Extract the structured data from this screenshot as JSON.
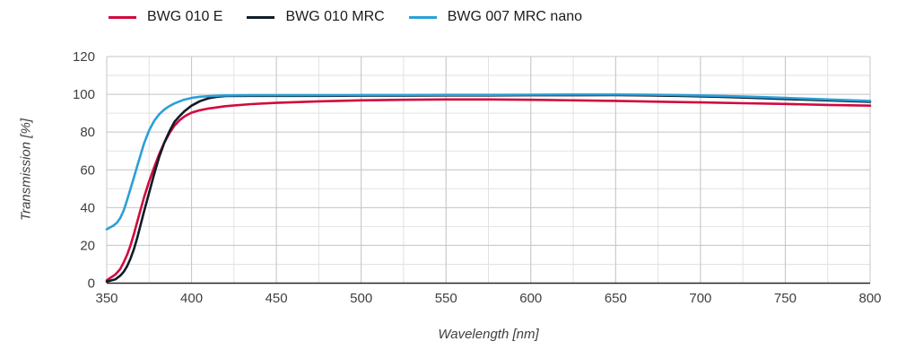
{
  "chart_data": {
    "type": "line",
    "title": "",
    "xlabel": "Wavelength [nm]",
    "ylabel": "Transmission [%]",
    "xlim": [
      350,
      800
    ],
    "ylim": [
      0,
      120
    ],
    "xticks": [
      350,
      400,
      450,
      500,
      550,
      600,
      650,
      700,
      750,
      800
    ],
    "yticks": [
      0,
      20,
      40,
      60,
      80,
      100,
      120
    ],
    "x_minor_step": 25,
    "y_minor_step": 10,
    "grid": true,
    "grid_minor_color": "#e2e2e2",
    "grid_major_color": "#c7c7c7",
    "axis_color": "#262626",
    "legend_position": "top-left",
    "series": [
      {
        "name": "BWG 010 E",
        "color": "#d00a3e",
        "points": [
          [
            350,
            1.5
          ],
          [
            355,
            4.5
          ],
          [
            358,
            7.5
          ],
          [
            360,
            11
          ],
          [
            362,
            15
          ],
          [
            364,
            20
          ],
          [
            366,
            26
          ],
          [
            368,
            32.5
          ],
          [
            370,
            39
          ],
          [
            372,
            45.5
          ],
          [
            375,
            54
          ],
          [
            378,
            61.5
          ],
          [
            381,
            68.5
          ],
          [
            384,
            74.5
          ],
          [
            387,
            79.5
          ],
          [
            390,
            83.5
          ],
          [
            393,
            86.3
          ],
          [
            396,
            88.4
          ],
          [
            400,
            90.3
          ],
          [
            405,
            91.6
          ],
          [
            410,
            92.5
          ],
          [
            420,
            93.7
          ],
          [
            435,
            94.8
          ],
          [
            450,
            95.5
          ],
          [
            475,
            96.3
          ],
          [
            500,
            96.8
          ],
          [
            525,
            97.1
          ],
          [
            550,
            97.3
          ],
          [
            575,
            97.3
          ],
          [
            600,
            97.1
          ],
          [
            625,
            96.8
          ],
          [
            650,
            96.5
          ],
          [
            675,
            96.1
          ],
          [
            700,
            95.7
          ],
          [
            725,
            95.3
          ],
          [
            750,
            94.9
          ],
          [
            775,
            94.4
          ],
          [
            800,
            94.0
          ]
        ]
      },
      {
        "name": "BWG 010 MRC",
        "color": "#101c28",
        "points": [
          [
            350,
            0.8
          ],
          [
            355,
            2
          ],
          [
            358,
            4
          ],
          [
            360,
            6
          ],
          [
            362,
            9
          ],
          [
            364,
            13
          ],
          [
            366,
            18
          ],
          [
            368,
            24
          ],
          [
            370,
            31
          ],
          [
            372,
            38
          ],
          [
            375,
            48
          ],
          [
            378,
            58
          ],
          [
            381,
            67
          ],
          [
            384,
            74.5
          ],
          [
            387,
            80.5
          ],
          [
            390,
            85.5
          ],
          [
            393,
            88.5
          ],
          [
            396,
            91.2
          ],
          [
            400,
            94
          ],
          [
            405,
            96.4
          ],
          [
            410,
            97.9
          ],
          [
            415,
            98.7
          ],
          [
            420,
            99.1
          ],
          [
            435,
            99.2
          ],
          [
            450,
            99.2
          ],
          [
            475,
            99.2
          ],
          [
            500,
            99.3
          ],
          [
            525,
            99.3
          ],
          [
            550,
            99.4
          ],
          [
            575,
            99.4
          ],
          [
            600,
            99.5
          ],
          [
            625,
            99.5
          ],
          [
            650,
            99.6
          ],
          [
            670,
            99.4
          ],
          [
            690,
            99.1
          ],
          [
            710,
            98.7
          ],
          [
            730,
            98.2
          ],
          [
            750,
            97.5
          ],
          [
            775,
            96.8
          ],
          [
            800,
            96.0
          ]
        ]
      },
      {
        "name": "BWG 007 MRC nano",
        "color": "#2b9fd8",
        "points": [
          [
            350,
            28.5
          ],
          [
            352,
            29.5
          ],
          [
            354,
            30.5
          ],
          [
            356,
            32
          ],
          [
            358,
            34.5
          ],
          [
            360,
            38.5
          ],
          [
            362,
            44
          ],
          [
            364,
            50
          ],
          [
            366,
            56
          ],
          [
            368,
            62
          ],
          [
            370,
            68
          ],
          [
            372,
            74
          ],
          [
            375,
            81
          ],
          [
            378,
            86
          ],
          [
            381,
            89.5
          ],
          [
            384,
            92
          ],
          [
            387,
            93.8
          ],
          [
            390,
            95.2
          ],
          [
            395,
            97
          ],
          [
            400,
            98.1
          ],
          [
            405,
            98.7
          ],
          [
            410,
            99
          ],
          [
            420,
            99.4
          ],
          [
            435,
            99.5
          ],
          [
            450,
            99.5
          ],
          [
            475,
            99.5
          ],
          [
            500,
            99.6
          ],
          [
            525,
            99.6
          ],
          [
            550,
            99.7
          ],
          [
            575,
            99.7
          ],
          [
            600,
            99.8
          ],
          [
            625,
            99.9
          ],
          [
            650,
            99.9
          ],
          [
            670,
            99.8
          ],
          [
            690,
            99.5
          ],
          [
            710,
            99.2
          ],
          [
            730,
            98.7
          ],
          [
            750,
            98.1
          ],
          [
            775,
            97.3
          ],
          [
            800,
            96.5
          ]
        ]
      }
    ]
  }
}
